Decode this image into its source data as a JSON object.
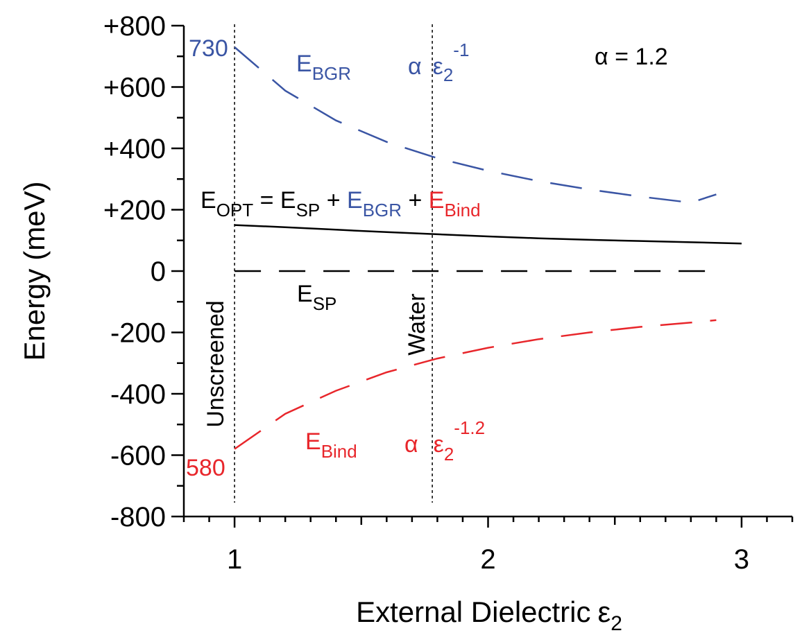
{
  "chart_data": {
    "type": "line",
    "title": "",
    "xlabel": "External Dielectric",
    "xlabel_symbol": "ε",
    "xlabel_sub": "2",
    "ylabel": "Energy (meV)",
    "xlim": [
      0.8,
      3.2
    ],
    "ylim": [
      -800,
      800
    ],
    "x_ticks": [
      1,
      2,
      3
    ],
    "x_tick_labels": [
      "1",
      "2",
      "3"
    ],
    "y_ticks": [
      800,
      600,
      400,
      200,
      0,
      -200,
      -400,
      -600,
      -800
    ],
    "y_tick_labels": [
      "+800",
      "+600",
      "+400",
      "+200",
      "0",
      "-200",
      "-400",
      "-600",
      "-800"
    ],
    "grid": false,
    "colors": {
      "bgr": "#3a55a4",
      "bind": "#e8262b",
      "opt": "#000000",
      "sp": "#000000"
    },
    "series": [
      {
        "name": "EBGR",
        "style": "dashed",
        "color": "#3a55a4",
        "x": [
          1.0,
          1.2,
          1.4,
          1.6,
          1.8,
          2.0,
          2.2,
          2.4,
          2.6,
          2.8,
          2.9
        ],
        "y": [
          730,
          588,
          491,
          421,
          368,
          327,
          293,
          266,
          243,
          223,
          250
        ]
      },
      {
        "name": "EBind",
        "style": "dashed",
        "color": "#e8262b",
        "x": [
          1.0,
          1.2,
          1.4,
          1.6,
          1.8,
          2.0,
          2.2,
          2.4,
          2.6,
          2.8,
          2.9
        ],
        "y": [
          -580,
          -465,
          -390,
          -330,
          -285,
          -250,
          -222,
          -200,
          -182,
          -168,
          -160
        ]
      },
      {
        "name": "EOPT",
        "style": "solid",
        "color": "#000000",
        "x": [
          1.0,
          1.2,
          1.4,
          1.6,
          1.8,
          2.0,
          2.2,
          2.4,
          2.6,
          2.8,
          3.0
        ],
        "y": [
          150,
          143,
          135,
          127,
          120,
          113,
          107,
          102,
          98,
          94,
          90
        ]
      },
      {
        "name": "ESP",
        "style": "dashed",
        "color": "#000000",
        "x": [
          1.0,
          2.9
        ],
        "y": [
          0,
          0
        ]
      }
    ],
    "vlines": [
      {
        "x": 1.0,
        "label": "Unscreened"
      },
      {
        "x": 1.78,
        "label": "Water"
      }
    ],
    "annotations": {
      "bgr_start": "730",
      "bind_start": "580",
      "alpha_value": "α = 1.2",
      "alpha_symbol": "α",
      "eps": "ε",
      "eps_sub": "2",
      "bgr_exponent": "-1",
      "bind_exponent": "-1.2",
      "e": "E",
      "sub_bgr": "BGR",
      "sub_bind": "Bind",
      "sub_sp": "SP",
      "sub_opt": "OPT",
      "equals": " = ",
      "plus": " + "
    }
  }
}
